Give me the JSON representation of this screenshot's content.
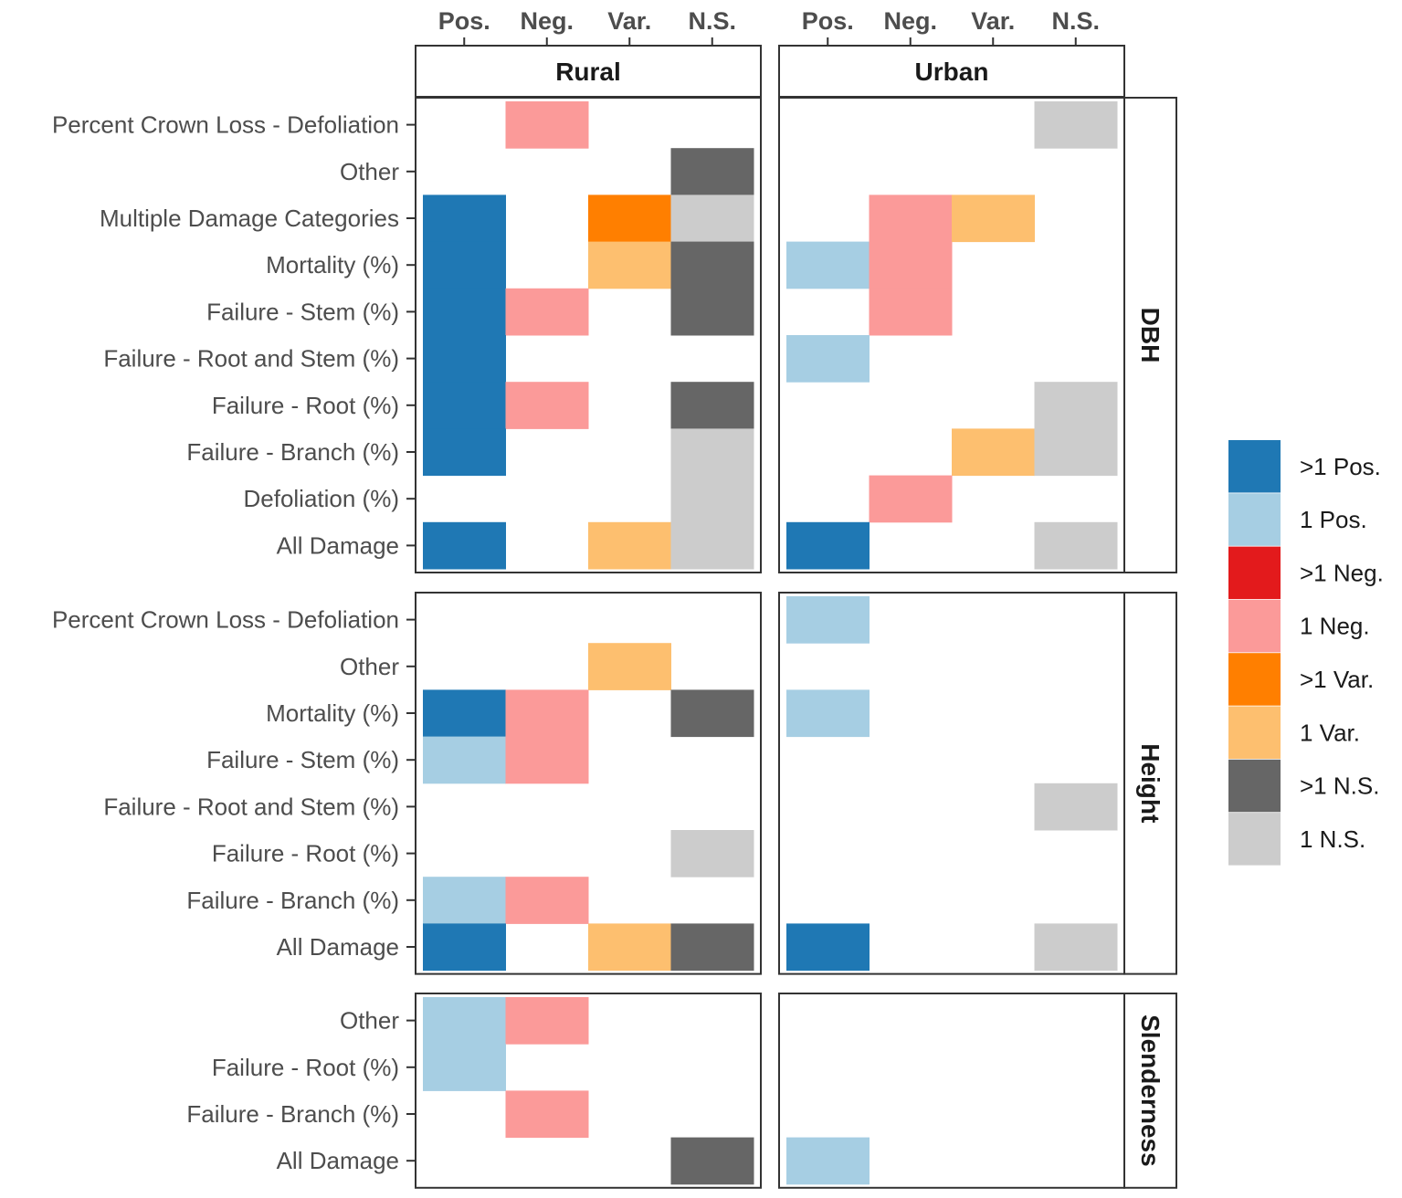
{
  "chart_data": {
    "type": "heatmap",
    "columns": [
      "Pos.",
      "Neg.",
      "Var.",
      "N.S."
    ],
    "column_facets": [
      "Rural",
      "Urban"
    ],
    "row_facets": [
      {
        "name": "DBH",
        "rows": [
          "Percent Crown Loss - Defoliation",
          "Other",
          "Multiple Damage Categories",
          "Mortality (%)",
          "Failure - Stem (%)",
          "Failure - Root and Stem (%)",
          "Failure - Root (%)",
          "Failure - Branch (%)",
          "Defoliation (%)",
          "All Damage"
        ],
        "cells": {
          "Rural": [
            [
              null,
              "1 Neg.",
              null,
              null
            ],
            [
              null,
              null,
              null,
              ">1 N.S."
            ],
            [
              ">1 Pos.",
              null,
              ">1 Var.",
              "1 N.S."
            ],
            [
              ">1 Pos.",
              null,
              "1 Var.",
              ">1 N.S."
            ],
            [
              ">1 Pos.",
              "1 Neg.",
              null,
              ">1 N.S."
            ],
            [
              ">1 Pos.",
              null,
              null,
              null
            ],
            [
              ">1 Pos.",
              "1 Neg.",
              null,
              ">1 N.S."
            ],
            [
              ">1 Pos.",
              null,
              null,
              "1 N.S."
            ],
            [
              null,
              null,
              null,
              "1 N.S."
            ],
            [
              ">1 Pos.",
              null,
              "1 Var.",
              "1 N.S."
            ]
          ],
          "Urban": [
            [
              null,
              null,
              null,
              "1 N.S."
            ],
            [
              null,
              null,
              null,
              null
            ],
            [
              null,
              "1 Neg.",
              "1 Var.",
              null
            ],
            [
              "1 Pos.",
              "1 Neg.",
              null,
              null
            ],
            [
              null,
              "1 Neg.",
              null,
              null
            ],
            [
              "1 Pos.",
              null,
              null,
              null
            ],
            [
              null,
              null,
              null,
              "1 N.S."
            ],
            [
              null,
              null,
              "1 Var.",
              "1 N.S."
            ],
            [
              null,
              "1 Neg.",
              null,
              null
            ],
            [
              ">1 Pos.",
              null,
              null,
              "1 N.S."
            ]
          ]
        }
      },
      {
        "name": "Height",
        "rows": [
          "Percent Crown Loss - Defoliation",
          "Other",
          "Mortality (%)",
          "Failure - Stem (%)",
          "Failure - Root and Stem (%)",
          "Failure - Root (%)",
          "Failure - Branch (%)",
          "All Damage"
        ],
        "cells": {
          "Rural": [
            [
              null,
              null,
              null,
              null
            ],
            [
              null,
              null,
              "1 Var.",
              null
            ],
            [
              ">1 Pos.",
              "1 Neg.",
              null,
              ">1 N.S."
            ],
            [
              "1 Pos.",
              "1 Neg.",
              null,
              null
            ],
            [
              null,
              null,
              null,
              null
            ],
            [
              null,
              null,
              null,
              "1 N.S."
            ],
            [
              "1 Pos.",
              "1 Neg.",
              null,
              null
            ],
            [
              ">1 Pos.",
              null,
              "1 Var.",
              ">1 N.S."
            ]
          ],
          "Urban": [
            [
              "1 Pos.",
              null,
              null,
              null
            ],
            [
              null,
              null,
              null,
              null
            ],
            [
              "1 Pos.",
              null,
              null,
              null
            ],
            [
              null,
              null,
              null,
              null
            ],
            [
              null,
              null,
              null,
              "1 N.S."
            ],
            [
              null,
              null,
              null,
              null
            ],
            [
              null,
              null,
              null,
              null
            ],
            [
              ">1 Pos.",
              null,
              null,
              "1 N.S."
            ]
          ]
        }
      },
      {
        "name": "Slenderness",
        "rows": [
          "Other",
          "Failure - Root (%)",
          "Failure - Branch (%)",
          "All Damage"
        ],
        "cells": {
          "Rural": [
            [
              "1 Pos.",
              "1 Neg.",
              null,
              null
            ],
            [
              "1 Pos.",
              null,
              null,
              null
            ],
            [
              null,
              "1 Neg.",
              null,
              null
            ],
            [
              null,
              null,
              null,
              ">1 N.S."
            ]
          ],
          "Urban": [
            [
              null,
              null,
              null,
              null
            ],
            [
              null,
              null,
              null,
              null
            ],
            [
              null,
              null,
              null,
              null
            ],
            [
              "1 Pos.",
              null,
              null,
              null
            ]
          ]
        }
      }
    ],
    "legend": [
      {
        "label": ">1 Pos.",
        "color": "#1f78b4"
      },
      {
        "label": "1 Pos.",
        "color": "#a6cee3"
      },
      {
        "label": ">1 Neg.",
        "color": "#e31a1c"
      },
      {
        "label": "1 Neg.",
        "color": "#fb9a99"
      },
      {
        "label": ">1 Var.",
        "color": "#ff7f00"
      },
      {
        "label": "1 Var.",
        "color": "#fdbf6f"
      },
      {
        "label": ">1 N.S.",
        "color": "#666666"
      },
      {
        "label": "1 N.S.",
        "color": "#cccccc"
      }
    ],
    "legend_position": "right"
  }
}
